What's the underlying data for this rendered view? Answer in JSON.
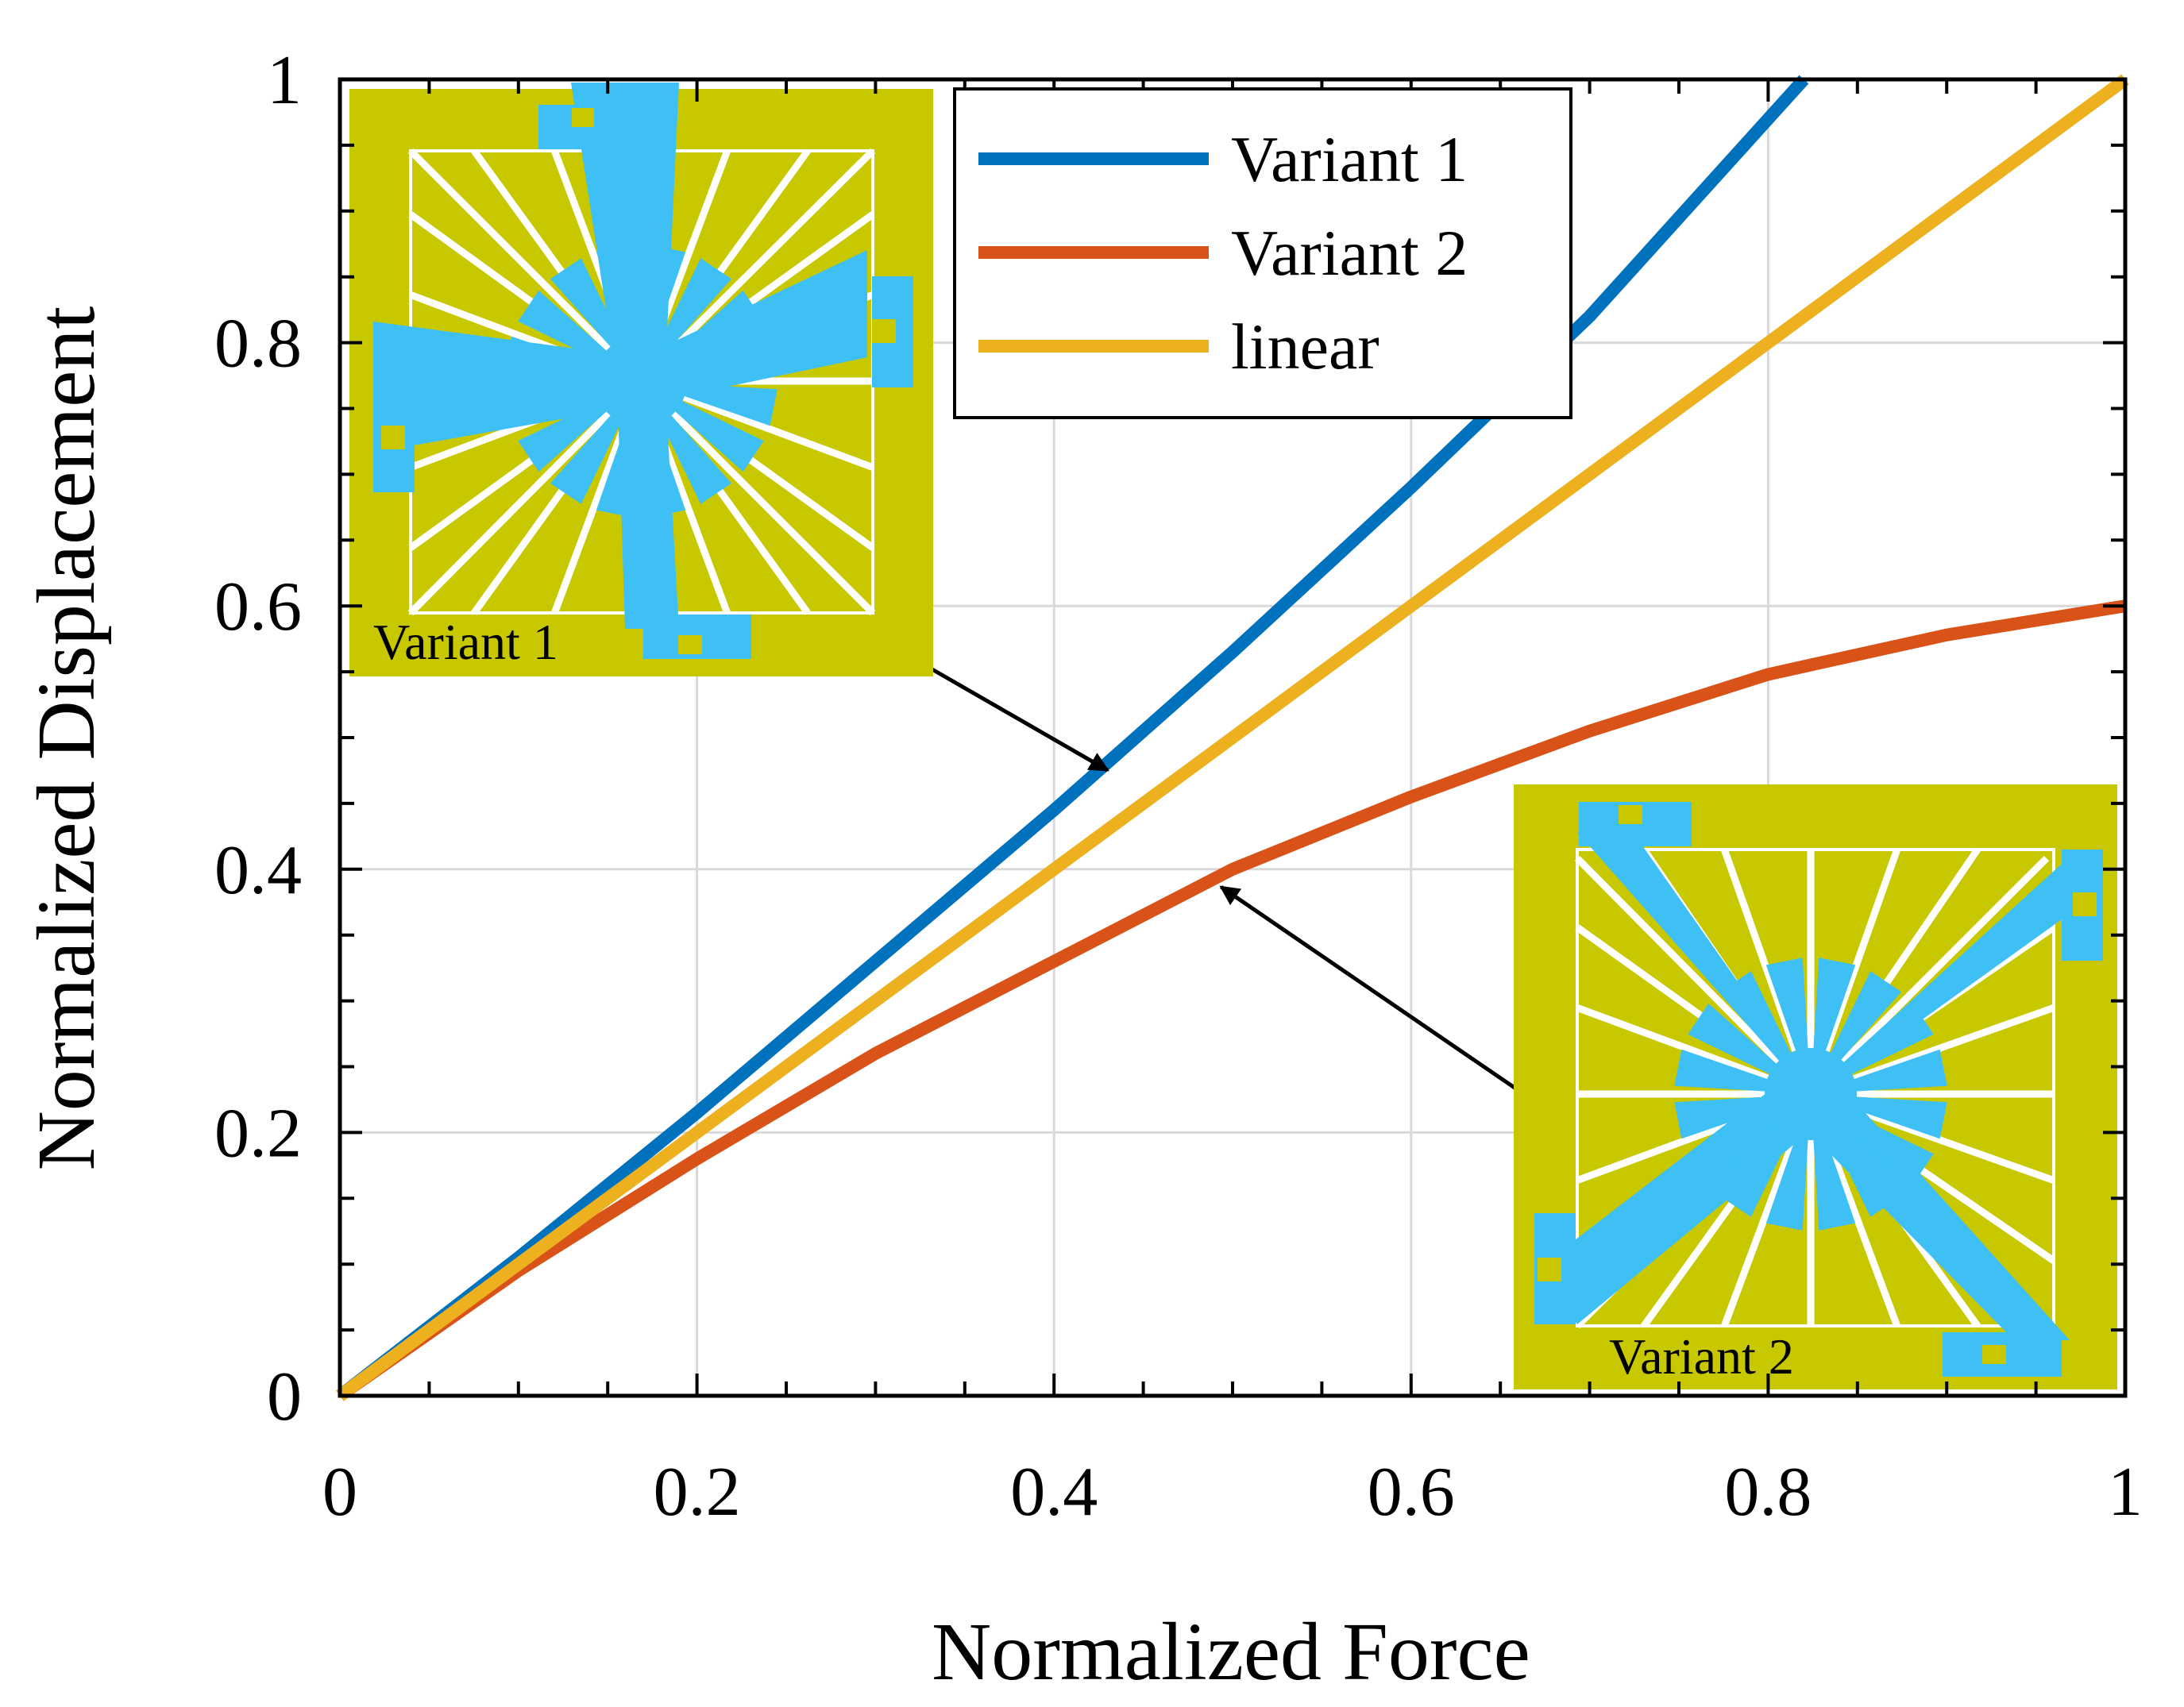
{
  "chart_data": {
    "type": "line",
    "title": "",
    "xlabel": "Normalized Force",
    "ylabel": "Normalized Displacement",
    "xlim": [
      0,
      1
    ],
    "ylim": [
      0,
      1
    ],
    "grid": true,
    "x_ticks": [
      0,
      0.2,
      0.4,
      0.6,
      0.8,
      1
    ],
    "y_ticks": [
      0,
      0.2,
      0.4,
      0.6,
      0.8,
      1
    ],
    "x_tick_labels": [
      "0",
      "0.2",
      "0.4",
      "0.6",
      "0.8",
      "1"
    ],
    "y_tick_labels": [
      "0",
      "0.2",
      "0.4",
      "0.6",
      "0.8",
      "1"
    ],
    "legend_position": "top-center",
    "series": [
      {
        "name": "Variant 1",
        "color": "#0072BD",
        "x": [
          0,
          0.1,
          0.2,
          0.3,
          0.4,
          0.5,
          0.6,
          0.7,
          0.82
        ],
        "y": [
          0,
          0.105,
          0.215,
          0.33,
          0.445,
          0.565,
          0.69,
          0.82,
          1.0
        ]
      },
      {
        "name": "Variant 2",
        "color": "#D95319",
        "x": [
          0,
          0.1,
          0.2,
          0.3,
          0.4,
          0.5,
          0.6,
          0.7,
          0.8,
          0.9,
          1.0
        ],
        "y": [
          0,
          0.095,
          0.18,
          0.26,
          0.33,
          0.4,
          0.455,
          0.505,
          0.548,
          0.578,
          0.6
        ]
      },
      {
        "name": "linear",
        "color": "#EDB120",
        "x": [
          0,
          1
        ],
        "y": [
          0,
          1
        ]
      }
    ],
    "annotations": [
      {
        "label": "Variant 1",
        "points_to_series": "Variant 1",
        "target": [
          0.43,
          0.48
        ]
      },
      {
        "label": "Variant 2",
        "points_to_series": "Variant 2",
        "target": [
          0.49,
          0.395
        ]
      }
    ]
  },
  "colors": {
    "inset_background": "#C8C800",
    "inset_structure": "#3EC0F5"
  }
}
